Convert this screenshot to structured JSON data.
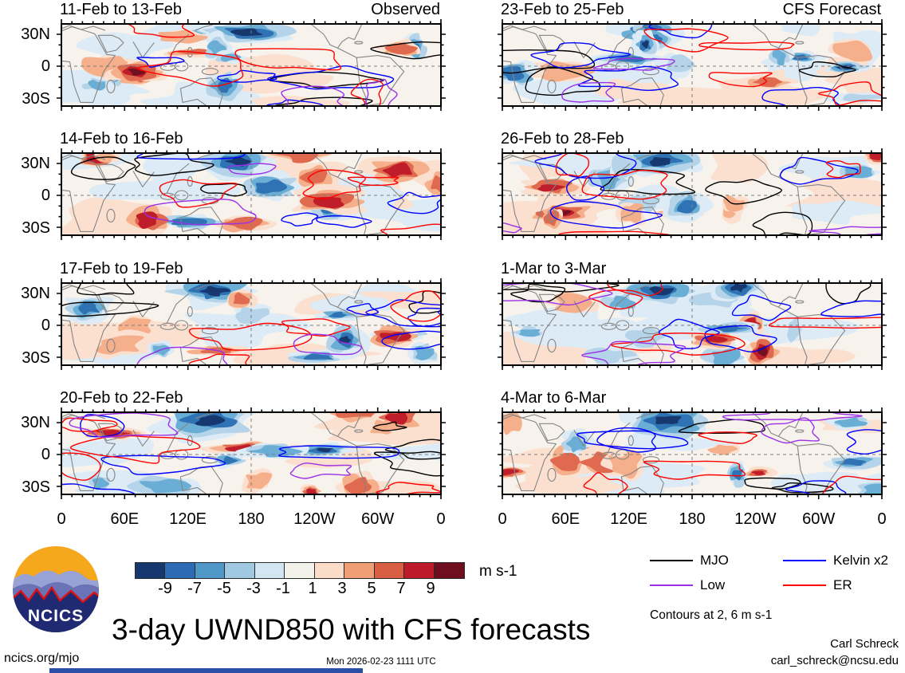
{
  "figure": {
    "title": "3-day UWND850 with CFS forecasts",
    "contour_note": "Contours at 2, 6 m s-1"
  },
  "panels": [
    {
      "title": "11-Feb to 13-Feb",
      "annotation": "Observed",
      "column": "left"
    },
    {
      "title": "14-Feb to 16-Feb",
      "annotation": "",
      "column": "left"
    },
    {
      "title": "17-Feb to 19-Feb",
      "annotation": "",
      "column": "left"
    },
    {
      "title": "20-Feb to 22-Feb",
      "annotation": "",
      "column": "left"
    },
    {
      "title": "23-Feb to 25-Feb",
      "annotation": "CFS Forecast",
      "column": "right"
    },
    {
      "title": "26-Feb to 28-Feb",
      "annotation": "",
      "column": "right"
    },
    {
      "title": "1-Mar to 3-Mar",
      "annotation": "",
      "column": "right"
    },
    {
      "title": "4-Mar to 6-Mar",
      "annotation": "",
      "column": "right"
    }
  ],
  "axes": {
    "x_ticks": [
      "0",
      "60E",
      "120E",
      "180",
      "120W",
      "60W",
      "0"
    ],
    "y_ticks": [
      "30N",
      "0",
      "30S"
    ]
  },
  "colorbar": {
    "labels": [
      "-9",
      "-7",
      "-5",
      "-3",
      "-1",
      "1",
      "3",
      "5",
      "7",
      "9"
    ],
    "colors": [
      "#16386e",
      "#2d6cb5",
      "#4f97c7",
      "#a0c8e0",
      "#d3e5f1",
      "#f2f1ea",
      "#fbdcc9",
      "#f09e75",
      "#d85f44",
      "#bd1a2a",
      "#6e0e1f"
    ],
    "unit": "m s-1"
  },
  "legend": {
    "items": [
      {
        "label": "MJO",
        "color": "#000000"
      },
      {
        "label": "Kelvin x2",
        "color": "#0000ff"
      },
      {
        "label": "Low",
        "color": "#9b30e8"
      },
      {
        "label": "ER",
        "color": "#ff0000"
      }
    ]
  },
  "logo": {
    "text": "NCICS"
  },
  "footer": {
    "left": "ncics.org/mjo",
    "center": "Mon 2026-02-23 1111 UTC",
    "right_name": "Carl Schreck",
    "right_email": "carl_schreck@ncsu.edu"
  },
  "chart_data": {
    "type": "heatmap",
    "subtype": "filled-contour world maps of 850-hPa zonal wind anomaly",
    "title": "3-day UWND850 with CFS forecasts",
    "panels": [
      {
        "title": "11-Feb to 13-Feb",
        "annotation": "Observed"
      },
      {
        "title": "14-Feb to 16-Feb",
        "annotation": ""
      },
      {
        "title": "17-Feb to 19-Feb",
        "annotation": ""
      },
      {
        "title": "20-Feb to 22-Feb",
        "annotation": ""
      },
      {
        "title": "23-Feb to 25-Feb",
        "annotation": "CFS Forecast"
      },
      {
        "title": "26-Feb to 28-Feb",
        "annotation": ""
      },
      {
        "title": "1-Mar to 3-Mar",
        "annotation": ""
      },
      {
        "title": "4-Mar to 6-Mar",
        "annotation": ""
      }
    ],
    "x_axis": {
      "ticks": [
        "0",
        "60E",
        "120E",
        "180",
        "120W",
        "60W",
        "0"
      ],
      "range": "0 to 360 degrees longitude",
      "grid": false
    },
    "y_axis": {
      "ticks": [
        "30N",
        "0",
        "30S"
      ],
      "range": "approx 40N to 40S latitude",
      "grid": false
    },
    "color_scale": {
      "levels": [
        -9,
        -7,
        -5,
        -3,
        -1,
        1,
        3,
        5,
        7,
        9
      ],
      "unit": "m s-1",
      "colors": [
        "#16386e",
        "#2d6cb5",
        "#4f97c7",
        "#a0c8e0",
        "#d3e5f1",
        "#f2f1ea",
        "#fbdcc9",
        "#f09e75",
        "#d85f44",
        "#bd1a2a",
        "#6e0e1f"
      ]
    },
    "contour_levels": [
      2,
      6
    ],
    "contour_unit": "m s-1",
    "legend_position": "bottom-right",
    "series": [
      {
        "name": "MJO",
        "color": "#000000"
      },
      {
        "name": "Kelvin x2",
        "color": "#0000ff"
      },
      {
        "name": "Low",
        "color": "#9b30e8"
      },
      {
        "name": "ER",
        "color": "#ff0000"
      }
    ]
  }
}
